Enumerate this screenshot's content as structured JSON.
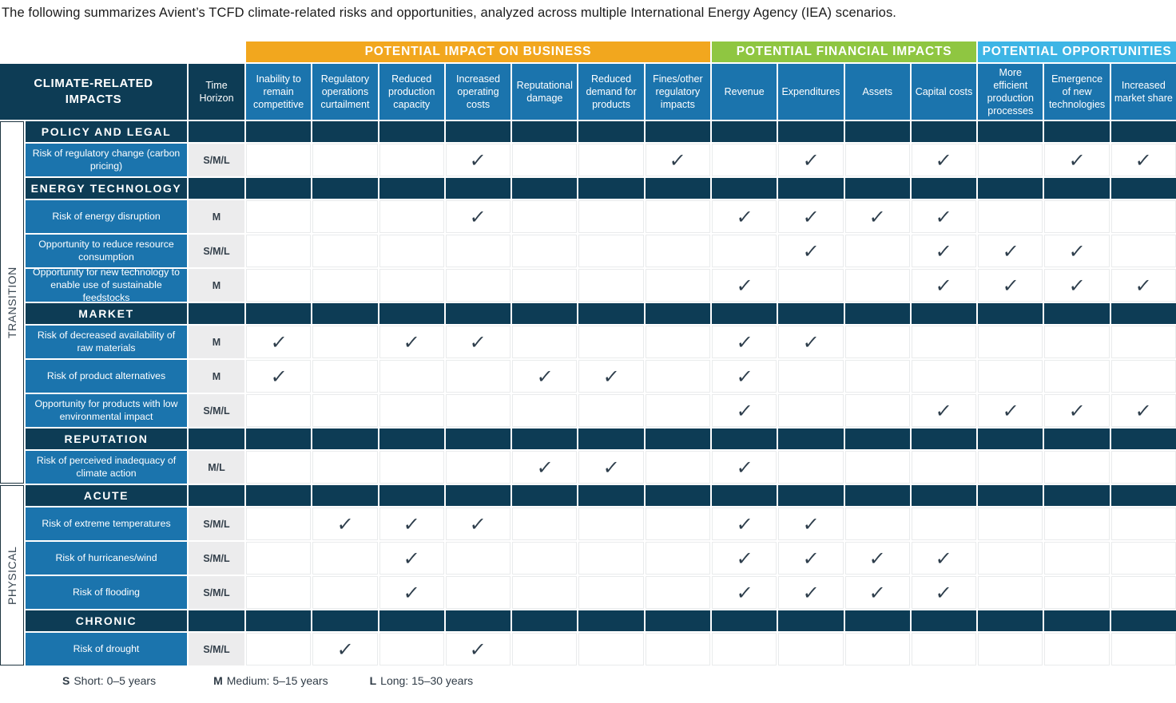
{
  "page_title": "The following summarizes Avient’s TCFD climate-related risks and opportunities, analyzed across multiple International Energy Agency (IEA) scenarios.",
  "colors": {
    "navy": "#0d3c55",
    "row_blue": "#1b74ad",
    "impact_business_orange": "#f2a71e",
    "financial_green": "#8fc641",
    "opportunities_cyan": "#3eb5e5",
    "time_cell_gray": "#ececed",
    "check_dark": "#2e3e4c"
  },
  "table": {
    "corner_header": "CLIMATE-RELATED IMPACTS",
    "time_horizon_header": "Time Horizon",
    "check_glyph": "✓",
    "groups": [
      {
        "label": "POTENTIAL IMPACT ON BUSINESS",
        "color": "#f2a71e",
        "span": 7
      },
      {
        "label": "POTENTIAL FINANCIAL IMPACTS",
        "color": "#8fc641",
        "span": 4
      },
      {
        "label": "POTENTIAL OPPORTUNITIES",
        "color": "#3eb5e5",
        "span": 3
      }
    ],
    "columns": [
      "Inability to remain competitive",
      "Regulatory operations curtailment",
      "Reduced production capacity",
      "Increased operating costs",
      "Reputational damage",
      "Reduced demand for products",
      "Fines/other regulatory impacts",
      "Revenue",
      "Expenditures",
      "Assets",
      "Capital costs",
      "More efficient production processes",
      "Emergence of new technologies",
      "Increased market share"
    ],
    "side_groups": [
      {
        "label": "TRANSITION"
      },
      {
        "label": "PHYSICAL"
      }
    ],
    "rows": [
      {
        "type": "section",
        "label": "POLICY AND LEGAL"
      },
      {
        "type": "data",
        "label": "Risk of regulatory change (carbon pricing)",
        "time": "S/M/L",
        "checks": [
          4,
          7,
          9,
          11,
          13,
          14
        ]
      },
      {
        "type": "section",
        "label": "ENERGY TECHNOLOGY"
      },
      {
        "type": "data",
        "label": "Risk of energy disruption",
        "time": "M",
        "checks": [
          4,
          8,
          9,
          10,
          11
        ]
      },
      {
        "type": "data",
        "label": "Opportunity to reduce resource consumption",
        "time": "S/M/L",
        "checks": [
          9,
          11,
          12,
          13
        ]
      },
      {
        "type": "data",
        "label": "Opportunity for new technology to enable use of sustainable feedstocks",
        "time": "M",
        "checks": [
          8,
          11,
          12,
          13,
          14
        ]
      },
      {
        "type": "section",
        "label": "MARKET"
      },
      {
        "type": "data",
        "label": "Risk of decreased availability of raw materials",
        "time": "M",
        "checks": [
          1,
          3,
          4,
          8,
          9
        ]
      },
      {
        "type": "data",
        "label": "Risk of product alternatives",
        "time": "M",
        "checks": [
          1,
          5,
          6,
          8
        ]
      },
      {
        "type": "data",
        "label": "Opportunity for products with low environmental impact",
        "time": "S/M/L",
        "checks": [
          8,
          11,
          12,
          13,
          14
        ]
      },
      {
        "type": "section",
        "label": "REPUTATION"
      },
      {
        "type": "data",
        "label": "Risk of perceived inadequacy of climate action",
        "time": "M/L",
        "checks": [
          5,
          6,
          8
        ]
      },
      {
        "type": "section",
        "label": "ACUTE"
      },
      {
        "type": "data",
        "label": "Risk of extreme temperatures",
        "time": "S/M/L",
        "checks": [
          2,
          3,
          4,
          8,
          9
        ]
      },
      {
        "type": "data",
        "label": "Risk of hurricanes/wind",
        "time": "S/M/L",
        "checks": [
          3,
          8,
          9,
          10,
          11
        ]
      },
      {
        "type": "data",
        "label": "Risk of flooding",
        "time": "S/M/L",
        "checks": [
          3,
          8,
          9,
          10,
          11
        ]
      },
      {
        "type": "section",
        "label": "CHRONIC"
      },
      {
        "type": "data",
        "label": "Risk of drought",
        "time": "S/M/L",
        "checks": [
          2,
          4
        ]
      }
    ]
  },
  "legend": [
    {
      "key": "S",
      "text": "Short: 0–5 years"
    },
    {
      "key": "M",
      "text": "Medium: 5–15 years"
    },
    {
      "key": "L",
      "text": "Long: 15–30 years"
    }
  ]
}
